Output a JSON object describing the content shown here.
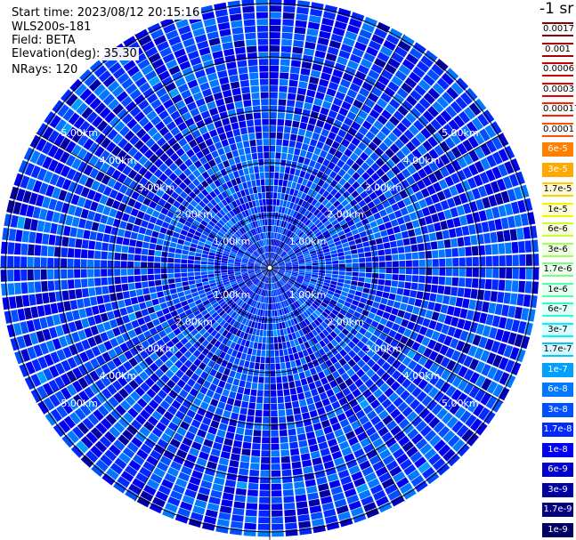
{
  "header": {
    "start_time": "Start time: 2023/08/12 20:15:16",
    "instrument": "WLS200s-181",
    "field": "Field: BETA",
    "elevation": "Elevation(deg): 35.30",
    "nrays": "NRays: 120"
  },
  "colorbar": {
    "title": "-1 sr",
    "labels": [
      "0.0017",
      "0.001",
      "0.0006",
      "0.0003",
      "0.00017",
      "0.0001",
      "6e-5",
      "3e-5",
      "1.7e-5",
      "1e-5",
      "6e-6",
      "3e-6",
      "1.7e-6",
      "1e-6",
      "6e-7",
      "3e-7",
      "1.7e-7",
      "1e-7",
      "6e-8",
      "3e-8",
      "1.7e-8",
      "1e-8",
      "6e-9",
      "3e-9",
      "1.7e-9",
      "1e-9"
    ],
    "colors": [
      "#8b0000",
      "#a80000",
      "#c80000",
      "#e40000",
      "#ff2000",
      "#ff5000",
      "#ff8000",
      "#ffa800",
      "#ffd000",
      "#f4f400",
      "#c8ff30",
      "#a0ff58",
      "#78ff80",
      "#50ffa8",
      "#28ffd0",
      "#00f4ff",
      "#00c8ff",
      "#00a0ff",
      "#0078ff",
      "#0050ff",
      "#0028ff",
      "#0000f0",
      "#0000c8",
      "#0000a0",
      "#000080",
      "#000060"
    ]
  },
  "chart_data": {
    "type": "heatmap",
    "projection": "polar (PPI scan)",
    "field": "BETA",
    "elevation_deg": 35.3,
    "n_rays": 120,
    "range_rings_km": [
      1,
      2,
      3,
      4,
      5
    ],
    "ring_labels": [
      "1.00km",
      "2.00km",
      "3.00km",
      "4.00km",
      "5.00km"
    ],
    "color_scale": "log",
    "value_range": [
      1e-09,
      0.0017
    ],
    "dominant_range": [
      1e-08,
      1e-07
    ],
    "elevated_patches": [
      {
        "azimuth_deg": 60,
        "range_km": 2.3,
        "approx_value": 3e-07
      },
      {
        "azimuth_deg": 110,
        "range_km": 3.6,
        "approx_value": 1e-06
      },
      {
        "azimuth_deg": 165,
        "range_km": 3.8,
        "approx_value": 1.7e-06
      },
      {
        "azimuth_deg": 235,
        "range_km": 3.7,
        "approx_value": 1e-06
      },
      {
        "azimuth_deg": 250,
        "range_km": 4.6,
        "approx_value": 1.7e-06
      },
      {
        "azimuth_deg": 125,
        "range_km": 5.9,
        "approx_value": 6e-06
      }
    ]
  }
}
